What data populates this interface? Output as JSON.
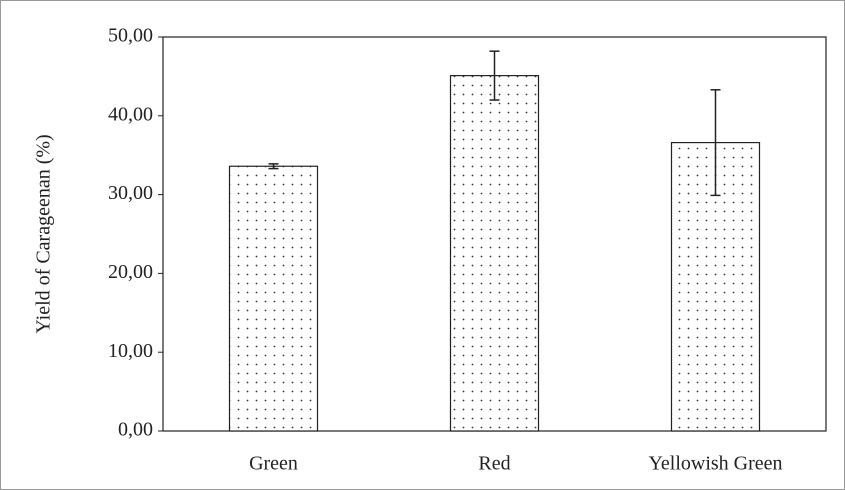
{
  "chart_data": {
    "type": "bar",
    "y_label": "Yield of Carageenan (%)",
    "categories": [
      "Green",
      "Red",
      "Yellowish Green"
    ],
    "values": [
      33.6,
      45.1,
      36.6
    ],
    "errors": [
      0.3,
      3.1,
      6.7
    ],
    "ylim": [
      0,
      50
    ],
    "yticks": [
      {
        "value": 0,
        "label": "0,00"
      },
      {
        "value": 10,
        "label": "10,00"
      },
      {
        "value": 20,
        "label": "20,00"
      },
      {
        "value": 30,
        "label": "30,00"
      },
      {
        "value": 40,
        "label": "40,00"
      },
      {
        "value": 50,
        "label": "50,00"
      }
    ]
  }
}
